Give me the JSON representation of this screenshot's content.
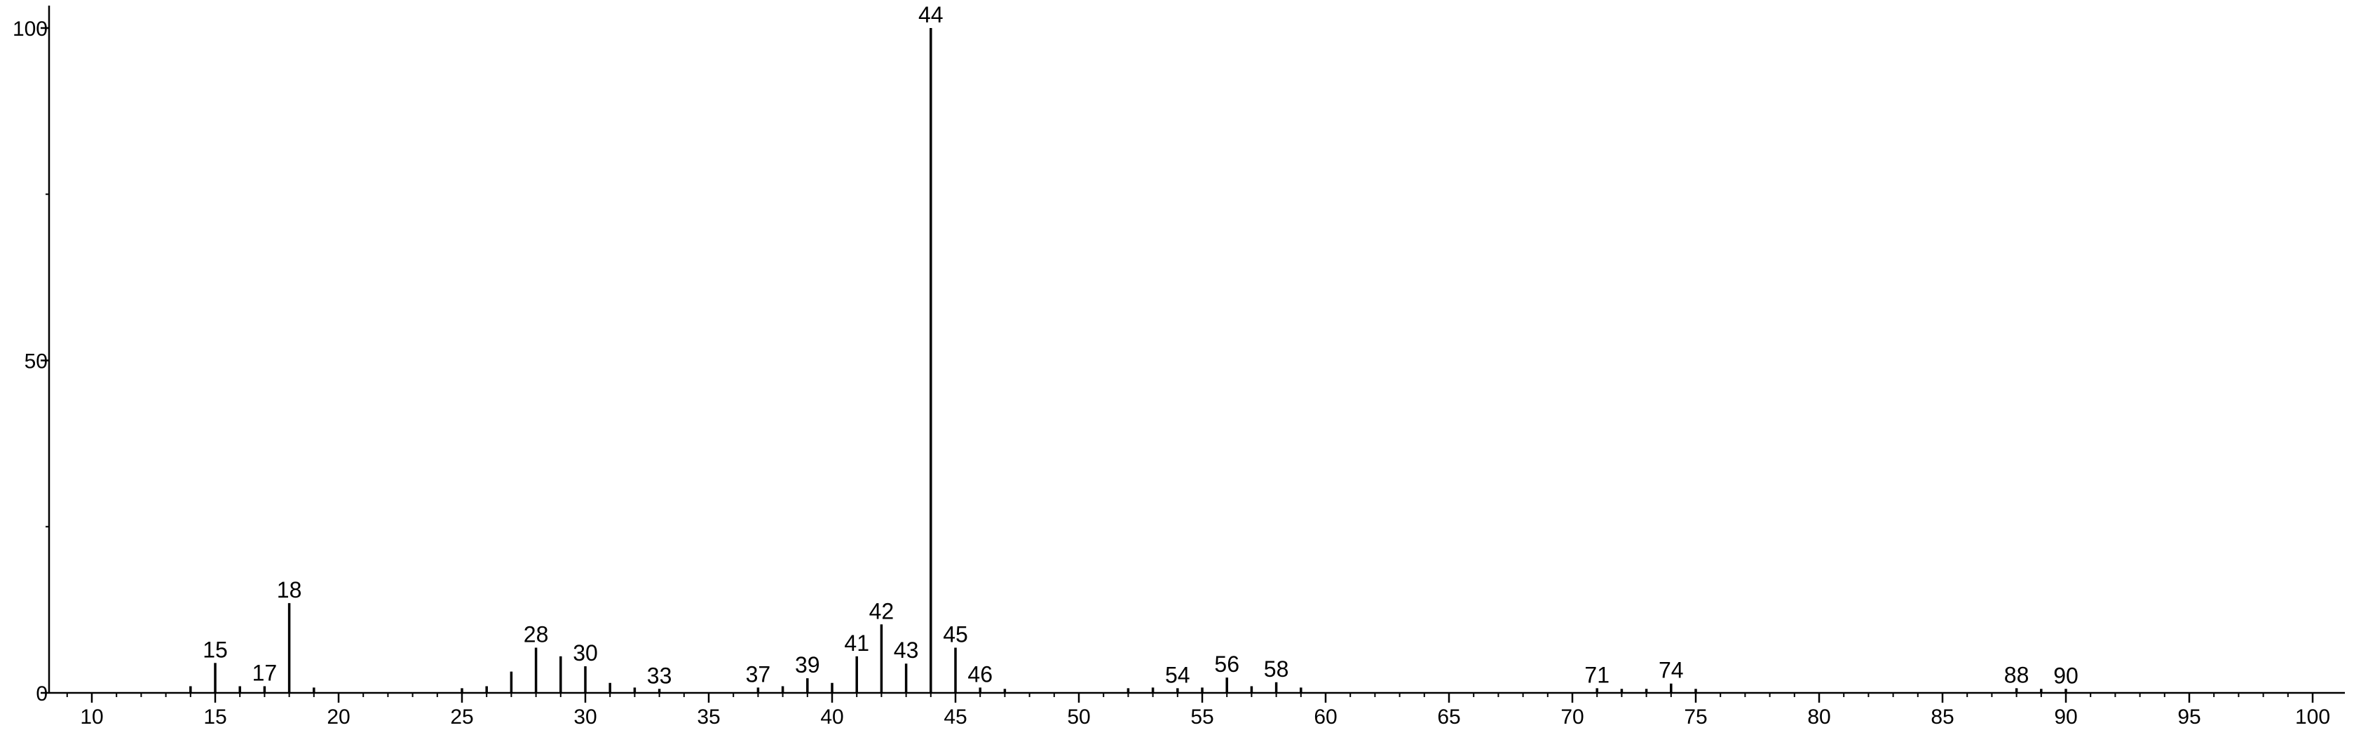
{
  "chart_data": {
    "type": "bar",
    "title": "",
    "xlabel": "",
    "ylabel": "",
    "xlim": [
      8,
      101
    ],
    "ylim": [
      0,
      100
    ],
    "x_ticks": [
      10,
      15,
      20,
      25,
      30,
      35,
      40,
      45,
      50,
      55,
      60,
      65,
      70,
      75,
      80,
      85,
      90,
      95,
      100
    ],
    "y_ticks": [
      0,
      50,
      100
    ],
    "grid": false,
    "legend": "none",
    "peaks": [
      {
        "mz": 14,
        "intensity": 1.0
      },
      {
        "mz": 15,
        "intensity": 4.5,
        "label": "15"
      },
      {
        "mz": 16,
        "intensity": 1.0
      },
      {
        "mz": 17,
        "intensity": 1.0,
        "label": "17"
      },
      {
        "mz": 18,
        "intensity": 13.5,
        "label": "18"
      },
      {
        "mz": 19,
        "intensity": 0.8
      },
      {
        "mz": 25,
        "intensity": 0.7
      },
      {
        "mz": 26,
        "intensity": 1.0
      },
      {
        "mz": 27,
        "intensity": 3.2
      },
      {
        "mz": 28,
        "intensity": 6.8,
        "label": "28"
      },
      {
        "mz": 29,
        "intensity": 5.5
      },
      {
        "mz": 30,
        "intensity": 4.0,
        "label": "30"
      },
      {
        "mz": 31,
        "intensity": 1.5
      },
      {
        "mz": 32,
        "intensity": 0.8
      },
      {
        "mz": 33,
        "intensity": 0.6,
        "label": "33"
      },
      {
        "mz": 37,
        "intensity": 0.8,
        "label": "37"
      },
      {
        "mz": 38,
        "intensity": 1.0
      },
      {
        "mz": 39,
        "intensity": 2.2,
        "label": "39"
      },
      {
        "mz": 40,
        "intensity": 1.5
      },
      {
        "mz": 41,
        "intensity": 5.5,
        "label": "41"
      },
      {
        "mz": 42,
        "intensity": 10.3,
        "label": "42"
      },
      {
        "mz": 43,
        "intensity": 4.4,
        "label": "43"
      },
      {
        "mz": 44,
        "intensity": 100.0,
        "label": "44"
      },
      {
        "mz": 45,
        "intensity": 6.8,
        "label": "45"
      },
      {
        "mz": 46,
        "intensity": 0.8,
        "label": "46"
      },
      {
        "mz": 47,
        "intensity": 0.6
      },
      {
        "mz": 52,
        "intensity": 0.7
      },
      {
        "mz": 53,
        "intensity": 0.8
      },
      {
        "mz": 54,
        "intensity": 0.7,
        "label": "54"
      },
      {
        "mz": 55,
        "intensity": 0.8
      },
      {
        "mz": 56,
        "intensity": 2.3,
        "label": "56"
      },
      {
        "mz": 57,
        "intensity": 1.0
      },
      {
        "mz": 58,
        "intensity": 1.6,
        "label": "58"
      },
      {
        "mz": 59,
        "intensity": 0.8
      },
      {
        "mz": 71,
        "intensity": 0.7,
        "label": "71"
      },
      {
        "mz": 72,
        "intensity": 0.6
      },
      {
        "mz": 73,
        "intensity": 0.6
      },
      {
        "mz": 74,
        "intensity": 1.4,
        "label": "74"
      },
      {
        "mz": 75,
        "intensity": 0.6
      },
      {
        "mz": 88,
        "intensity": 0.7,
        "label": "88"
      },
      {
        "mz": 89,
        "intensity": 0.6
      },
      {
        "mz": 90,
        "intensity": 0.6,
        "label": "90"
      }
    ]
  }
}
